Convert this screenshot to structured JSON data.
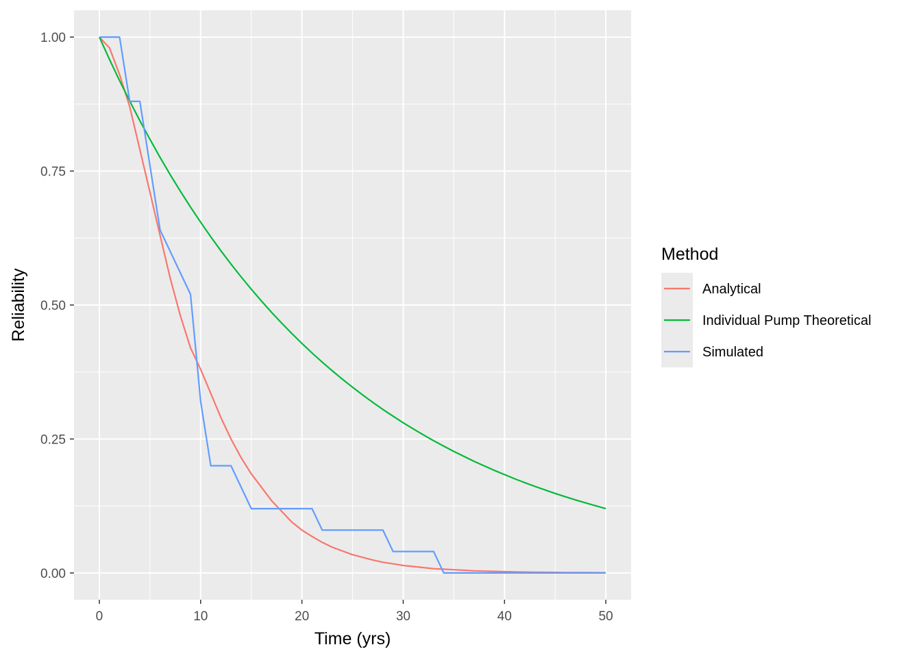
{
  "chart_data": {
    "type": "line",
    "xlabel": "Time (yrs)",
    "ylabel": "Reliability",
    "xlim": [
      -2.5,
      52.5
    ],
    "ylim": [
      -0.05,
      1.05
    ],
    "x_ticks": [
      0,
      10,
      20,
      30,
      40,
      50
    ],
    "x_tick_labels": [
      "0",
      "10",
      "20",
      "30",
      "40",
      "50"
    ],
    "y_ticks": [
      0,
      0.25,
      0.5,
      0.75,
      1.0
    ],
    "y_tick_labels": [
      "0.00",
      "0.25",
      "0.50",
      "0.75",
      "1.00"
    ],
    "grid": true,
    "legend": {
      "title": "Method",
      "position": "right"
    },
    "series": [
      {
        "name": "Analytical",
        "color": "#F8766D",
        "x": [
          0,
          1,
          2,
          3,
          4,
          5,
          6,
          7,
          8,
          9,
          10,
          11,
          12,
          13,
          14,
          15,
          16,
          17,
          18,
          19,
          20,
          21,
          22,
          23,
          24,
          25,
          26,
          27,
          28,
          29,
          30,
          31,
          32,
          33,
          34,
          35,
          36,
          37,
          38,
          39,
          40,
          41,
          42,
          43,
          44,
          45,
          46,
          47,
          48,
          49,
          50
        ],
        "y": [
          1.0,
          0.98,
          0.93,
          0.87,
          0.79,
          0.71,
          0.63,
          0.55,
          0.48,
          0.42,
          0.38,
          0.335,
          0.29,
          0.25,
          0.215,
          0.185,
          0.16,
          0.135,
          0.115,
          0.095,
          0.08,
          0.068,
          0.057,
          0.048,
          0.041,
          0.034,
          0.029,
          0.024,
          0.02,
          0.017,
          0.014,
          0.012,
          0.01,
          0.008,
          0.007,
          0.006,
          0.005,
          0.004,
          0.0035,
          0.003,
          0.0025,
          0.002,
          0.0017,
          0.0014,
          0.0012,
          0.001,
          0.0008,
          0.0007,
          0.0006,
          0.0005,
          0.0004
        ]
      },
      {
        "name": "Individual Pump Theoretical",
        "color": "#00BA38",
        "x": [
          0,
          1,
          2,
          3,
          4,
          5,
          6,
          7,
          8,
          9,
          10,
          11,
          12,
          13,
          14,
          15,
          16,
          17,
          18,
          19,
          20,
          21,
          22,
          23,
          24,
          25,
          26,
          27,
          28,
          29,
          30,
          31,
          32,
          33,
          34,
          35,
          36,
          37,
          38,
          39,
          40,
          41,
          42,
          43,
          44,
          45,
          46,
          47,
          48,
          49,
          50
        ],
        "y": [
          1.0,
          0.9585,
          0.9187,
          0.8806,
          0.844,
          0.809,
          0.7754,
          0.7432,
          0.7124,
          0.6828,
          0.6545,
          0.6273,
          0.6013,
          0.5763,
          0.5524,
          0.5295,
          0.5075,
          0.4864,
          0.4662,
          0.4469,
          0.4283,
          0.4105,
          0.3935,
          0.3772,
          0.3615,
          0.3465,
          0.3321,
          0.3183,
          0.3051,
          0.2925,
          0.2803,
          0.2687,
          0.2575,
          0.2468,
          0.2366,
          0.2268,
          0.2174,
          0.2083,
          0.1997,
          0.1914,
          0.1835,
          0.1758,
          0.1685,
          0.1616,
          0.1549,
          0.1484,
          0.1423,
          0.1364,
          0.1307,
          0.1253,
          0.12
        ]
      },
      {
        "name": "Simulated",
        "color": "#619CFF",
        "x": [
          0,
          2,
          3,
          4,
          6,
          9,
          10,
          11,
          13,
          15,
          21,
          22,
          28,
          29,
          33,
          34,
          50
        ],
        "y": [
          1.0,
          1.0,
          0.88,
          0.88,
          0.64,
          0.52,
          0.32,
          0.2,
          0.2,
          0.12,
          0.12,
          0.08,
          0.08,
          0.04,
          0.04,
          0.0,
          0.0
        ]
      }
    ]
  }
}
